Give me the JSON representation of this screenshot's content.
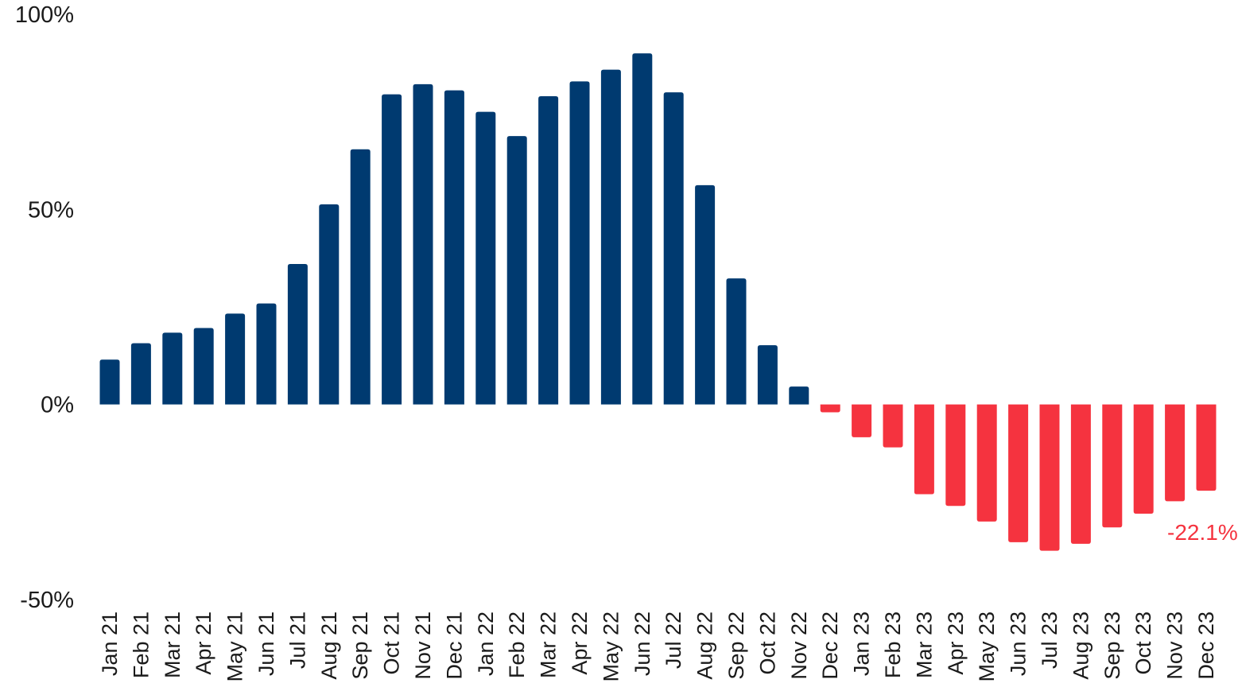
{
  "chart_data": {
    "type": "bar",
    "title": "",
    "xlabel": "",
    "ylabel": "",
    "ylim": [
      -50,
      100
    ],
    "yticks": [
      100,
      50,
      0,
      -50
    ],
    "ytick_labels": [
      "100%",
      "50%",
      "0%",
      "-50%"
    ],
    "grid": false,
    "legend": "none",
    "colors": {
      "positive": "#003A70",
      "negative": "#F5333F",
      "text": "#1a1a1a"
    },
    "categories": [
      "Jan 21",
      "Feb 21",
      "Mar 21",
      "Apr 21",
      "May 21",
      "Jun 21",
      "Jul 21",
      "Aug 21",
      "Sep 21",
      "Oct 21",
      "Nov 21",
      "Dec 21",
      "Jan 22",
      "Feb 22",
      "Mar 22",
      "Apr 22",
      "May 22",
      "Jun 22",
      "Jul 22",
      "Aug 22",
      "Sep 22",
      "Oct 22",
      "Nov 22",
      "Dec 22",
      "Jan 23",
      "Feb 23",
      "Mar 23",
      "Apr 23",
      "May 23",
      "Jun 23",
      "Jul 23",
      "Aug 23",
      "Sep 23",
      "Oct 23",
      "Nov 23",
      "Dec 23"
    ],
    "values": [
      11.5,
      15.7,
      18.4,
      19.6,
      23.3,
      25.9,
      36.0,
      51.3,
      65.4,
      79.5,
      82.1,
      80.5,
      75.0,
      68.8,
      79.0,
      82.8,
      85.8,
      90.0,
      80.0,
      56.2,
      32.3,
      15.2,
      4.6,
      -2.0,
      -8.4,
      -11.0,
      -23.0,
      -26.0,
      -30.0,
      -35.3,
      -37.5,
      -35.7,
      -31.5,
      -28.0,
      -24.8,
      -22.1
    ],
    "annotations": [
      {
        "category": "Dec 23",
        "text": "-22.1%"
      }
    ]
  }
}
